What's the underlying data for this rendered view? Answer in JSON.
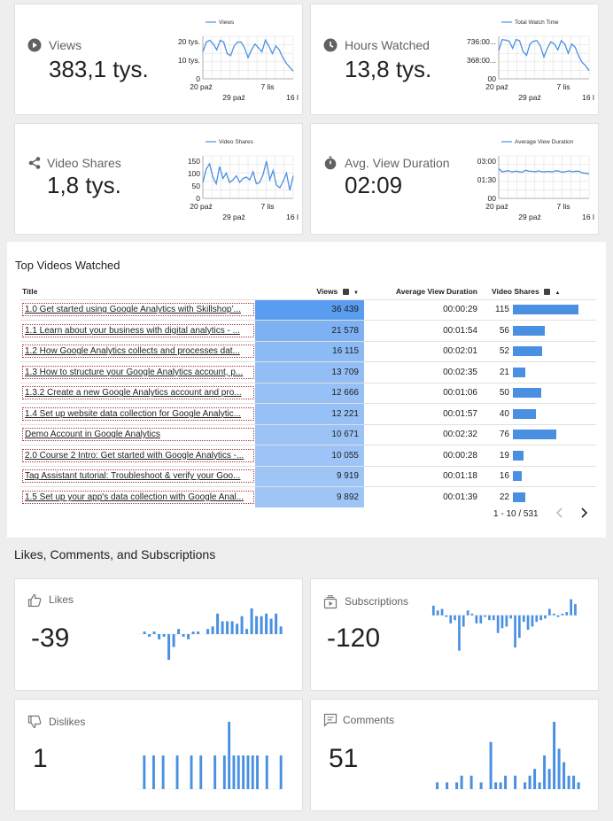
{
  "kpis": [
    {
      "label": "Views",
      "value": "383,1 tys.",
      "icon": "play-circle-icon",
      "legend": "Views",
      "yticks": [
        "20 tys.",
        "10 tys.",
        "0"
      ],
      "xticks": [
        "20 paź",
        "29 paź",
        "7 lis",
        "16 lis"
      ],
      "series": [
        14,
        19,
        20,
        18,
        15,
        20,
        19,
        13,
        12,
        17,
        19,
        19,
        16,
        11,
        15,
        18,
        16,
        14,
        20,
        17,
        13,
        17,
        15,
        11,
        8,
        6,
        4
      ],
      "ymax": 22
    },
    {
      "label": "Hours Watched",
      "value": "13,8 tys.",
      "icon": "clock-icon",
      "legend": "Total Watch Time",
      "yticks": [
        "736:00...",
        "368:00...",
        "00"
      ],
      "xticks": [
        "20 paź",
        "29 paź",
        "7 lis",
        "16 lis"
      ],
      "series": [
        520,
        720,
        710,
        690,
        560,
        720,
        700,
        500,
        430,
        640,
        690,
        700,
        600,
        400,
        560,
        680,
        640,
        530,
        700,
        640,
        470,
        640,
        580,
        420,
        300,
        240,
        150
      ],
      "ymax": 780
    },
    {
      "label": "Video Shares",
      "value": "1,8 tys.",
      "icon": "share-icon",
      "legend": "Video Shares",
      "yticks": [
        "150",
        "100",
        "50",
        "0"
      ],
      "xticks": [
        "20 paź",
        "29 paź",
        "7 lis",
        "16 lis"
      ],
      "series": [
        60,
        110,
        130,
        80,
        55,
        120,
        75,
        95,
        60,
        70,
        85,
        60,
        75,
        80,
        70,
        100,
        55,
        60,
        90,
        140,
        70,
        105,
        50,
        40,
        65,
        95,
        30,
        85
      ],
      "ymax": 160
    },
    {
      "label": "Avg. View Duration",
      "value": "02:09",
      "icon": "stopwatch-icon",
      "legend": "Average View Duration",
      "yticks": [
        "03:00",
        "01:30",
        "00"
      ],
      "xticks": [
        "20 paź",
        "29 paź",
        "7 lis",
        "16 lis"
      ],
      "series": [
        140,
        125,
        128,
        130,
        124,
        128,
        126,
        123,
        132,
        128,
        127,
        126,
        129,
        125,
        126,
        127,
        124,
        130,
        128,
        123,
        126,
        129,
        125,
        128,
        127,
        120,
        118,
        115
      ],
      "ymax": 200
    }
  ],
  "top_videos": {
    "title": "Top Videos Watched",
    "headers": {
      "title": "Title",
      "views": "Views",
      "avg": "Average View Duration",
      "shares": "Video Shares"
    },
    "rows": [
      {
        "title": "1.0 Get started using Google Analytics with Skillshop’...",
        "views": "36 439",
        "avg": "00:00:29",
        "shares": "115",
        "share_n": 115,
        "view_n": 36439
      },
      {
        "title": "1.1 Learn about your business with digital analytics - ...",
        "views": "21 578",
        "avg": "00:01:54",
        "shares": "56",
        "share_n": 56,
        "view_n": 21578
      },
      {
        "title": "1.2 How Google Analytics collects and processes dat...",
        "views": "16 115",
        "avg": "00:02:01",
        "shares": "52",
        "share_n": 52,
        "view_n": 16115
      },
      {
        "title": "1.3 How to structure your Google Analytics account, p...",
        "views": "13 709",
        "avg": "00:02:35",
        "shares": "21",
        "share_n": 21,
        "view_n": 13709
      },
      {
        "title": "1.3.2 Create a new Google Analytics account and pro...",
        "views": "12 666",
        "avg": "00:01:06",
        "shares": "50",
        "share_n": 50,
        "view_n": 12666
      },
      {
        "title": "1.4 Set up website data collection for Google Analytic...",
        "views": "12 221",
        "avg": "00:01:57",
        "shares": "40",
        "share_n": 40,
        "view_n": 12221
      },
      {
        "title": "Demo Account in Google Analytics",
        "views": "10 671",
        "avg": "00:02:32",
        "shares": "76",
        "share_n": 76,
        "view_n": 10671
      },
      {
        "title": "2.0 Course 2 Intro: Get started with Google Analytics -...",
        "views": "10 055",
        "avg": "00:00:28",
        "shares": "19",
        "share_n": 19,
        "view_n": 10055
      },
      {
        "title": "Tag Assistant tutorial: Troubleshoot & verify your Goo...",
        "views": "9 919",
        "avg": "00:01:18",
        "shares": "16",
        "share_n": 16,
        "view_n": 9919
      },
      {
        "title": "1.5 Set up your app's data collection with Google Anal...",
        "views": "9 892",
        "avg": "00:01:39",
        "shares": "22",
        "share_n": 22,
        "view_n": 9892
      }
    ],
    "pagination": "1 - 10 / 531",
    "prev_icon": "chevron-left-icon",
    "next_icon": "chevron-right-icon"
  },
  "engagement": {
    "title": "Likes, Comments, and Subscriptions",
    "cards": [
      {
        "label": "Likes",
        "value": "-39",
        "icon": "thumb-up-icon",
        "bars": [
          0,
          1,
          -1,
          1,
          -2,
          -1,
          -10,
          -5,
          2,
          -1,
          -2,
          1,
          1,
          0,
          2,
          3,
          8,
          5,
          5,
          5,
          4,
          7,
          2,
          10,
          7,
          7,
          8,
          6,
          8,
          3
        ],
        "max": 10
      },
      {
        "label": "Subscriptions",
        "value": "-120",
        "icon": "subscriptions-icon",
        "bars": [
          6,
          3,
          4,
          -1,
          -5,
          -3,
          -22,
          -7,
          3,
          1,
          -5,
          -5,
          -1,
          -3,
          -3,
          -11,
          -8,
          -7,
          -2,
          -20,
          -14,
          -4,
          -9,
          -7,
          -4,
          -3,
          -2,
          4,
          1,
          -1,
          1,
          2,
          10,
          7
        ],
        "max": 22
      },
      {
        "label": "Dislikes",
        "value": "1",
        "icon": "thumb-down-icon",
        "bars": [
          0,
          1,
          0,
          1,
          0,
          1,
          0,
          0,
          1,
          0,
          0,
          1,
          0,
          1,
          0,
          0,
          1,
          0,
          1,
          2,
          1,
          1,
          1,
          1,
          1,
          1,
          0,
          1,
          0,
          0,
          1
        ],
        "max": 2
      },
      {
        "label": "Comments",
        "value": "51",
        "icon": "comment-icon",
        "bars": [
          1,
          0,
          1,
          0,
          1,
          2,
          0,
          2,
          0,
          1,
          0,
          7,
          1,
          1,
          2,
          0,
          2,
          0,
          1,
          2,
          3,
          1,
          5,
          3,
          10,
          6,
          4,
          2,
          2,
          1
        ],
        "max": 10
      }
    ]
  },
  "colors": {
    "accent": "#4a90e2",
    "heat_dark": "#5a9cf0",
    "heat_light": "#cde0fb",
    "bar": "#4a90e2"
  }
}
